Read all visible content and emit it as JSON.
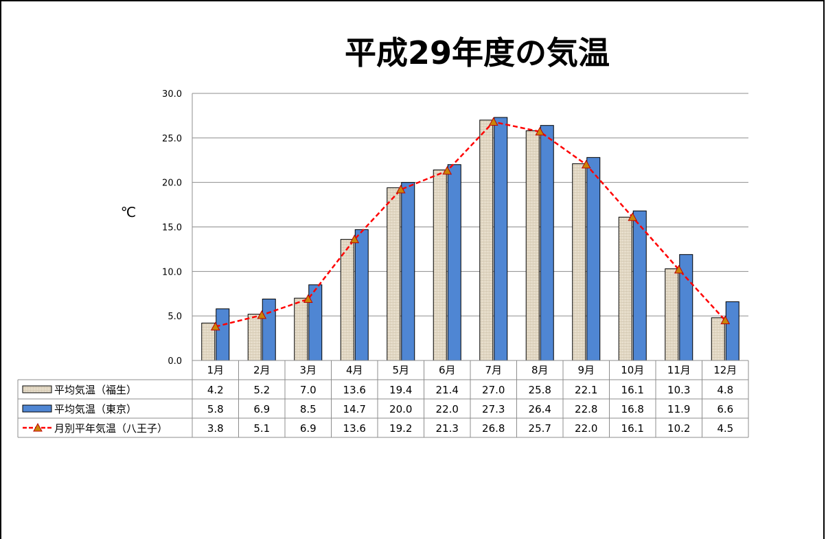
{
  "chart_data": {
    "type": "bar",
    "title": "平成29年度の気温",
    "ylabel": "℃",
    "ylim": [
      0,
      30
    ],
    "yticks": [
      "0.0",
      "5.0",
      "10.0",
      "15.0",
      "20.0",
      "25.0",
      "30.0"
    ],
    "grid": true,
    "legend": "data-table",
    "categories": [
      "1月",
      "2月",
      "3月",
      "4月",
      "5月",
      "6月",
      "7月",
      "8月",
      "9月",
      "10月",
      "11月",
      "12月"
    ],
    "series": [
      {
        "name": "平均気温（福生）",
        "kind": "bar",
        "color": "#e2d8c4",
        "values": [
          4.2,
          5.2,
          7.0,
          13.6,
          19.4,
          21.4,
          27.0,
          25.8,
          22.1,
          16.1,
          10.3,
          4.8
        ],
        "labels": [
          "4.2",
          "5.2",
          "7.0",
          "13.6",
          "19.4",
          "21.4",
          "27.0",
          "25.8",
          "22.1",
          "16.1",
          "10.3",
          "4.8"
        ]
      },
      {
        "name": "平均気温（東京）",
        "kind": "bar",
        "color": "#4f86d3",
        "values": [
          5.8,
          6.9,
          8.5,
          14.7,
          20.0,
          22.0,
          27.3,
          26.4,
          22.8,
          16.8,
          11.9,
          6.6
        ],
        "labels": [
          "5.8",
          "6.9",
          "8.5",
          "14.7",
          "20.0",
          "22.0",
          "27.3",
          "26.4",
          "22.8",
          "16.8",
          "11.9",
          "6.6"
        ]
      },
      {
        "name": "月別平年気温（八王子）",
        "kind": "line",
        "color": "#ff0000",
        "marker_color": "#c8860a",
        "values": [
          3.8,
          5.1,
          6.9,
          13.6,
          19.2,
          21.3,
          26.8,
          25.7,
          22.0,
          16.1,
          10.2,
          4.5
        ],
        "labels": [
          "3.8",
          "5.1",
          "6.9",
          "13.6",
          "19.2",
          "21.3",
          "26.8",
          "25.7",
          "22.0",
          "16.1",
          "10.2",
          "4.5"
        ]
      }
    ]
  }
}
